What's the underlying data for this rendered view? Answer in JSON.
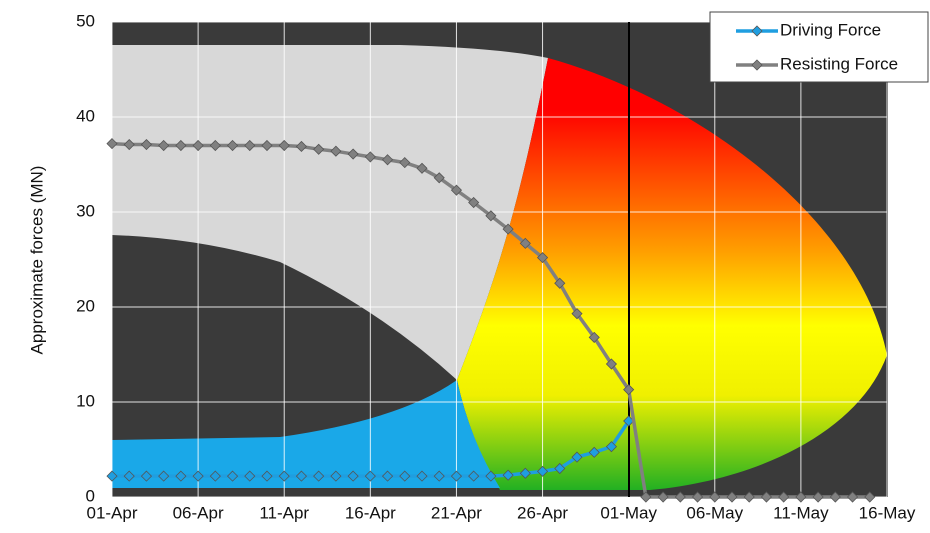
{
  "chart_data": {
    "type": "line",
    "ylabel": "Approximate forces (MN)",
    "x": [
      "01-Apr",
      "02-Apr",
      "03-Apr",
      "04-Apr",
      "05-Apr",
      "06-Apr",
      "07-Apr",
      "08-Apr",
      "09-Apr",
      "10-Apr",
      "11-Apr",
      "12-Apr",
      "13-Apr",
      "14-Apr",
      "15-Apr",
      "16-Apr",
      "17-Apr",
      "18-Apr",
      "19-Apr",
      "20-Apr",
      "21-Apr",
      "22-Apr",
      "23-Apr",
      "24-Apr",
      "25-Apr",
      "26-Apr",
      "27-Apr",
      "28-Apr",
      "29-Apr",
      "30-Apr",
      "01-May",
      "02-May",
      "03-May",
      "04-May",
      "05-May",
      "06-May",
      "07-May",
      "08-May",
      "09-May",
      "10-May",
      "11-May",
      "12-May",
      "13-May",
      "14-May",
      "15-May"
    ],
    "series": [
      {
        "name": "Driving Force",
        "color": "#1f9ee0",
        "values": [
          2.2,
          2.2,
          2.2,
          2.2,
          2.2,
          2.2,
          2.2,
          2.2,
          2.2,
          2.2,
          2.2,
          2.2,
          2.2,
          2.2,
          2.2,
          2.2,
          2.2,
          2.2,
          2.2,
          2.2,
          2.2,
          2.2,
          2.2,
          2.3,
          2.5,
          2.7,
          3.0,
          4.2,
          4.7,
          5.3,
          8.0,
          null,
          null,
          null,
          null,
          null,
          null,
          null,
          null,
          null,
          null,
          null,
          null,
          null,
          null
        ]
      },
      {
        "name": "Resisting Force",
        "color": "#808080",
        "values": [
          37.2,
          37.1,
          37.1,
          37.0,
          37.0,
          37.0,
          37.0,
          37.0,
          37.0,
          37.0,
          37.0,
          36.9,
          36.6,
          36.4,
          36.1,
          35.8,
          35.5,
          35.2,
          34.6,
          33.6,
          32.3,
          31.0,
          29.6,
          28.2,
          26.7,
          25.2,
          22.5,
          19.3,
          16.8,
          14.0,
          11.3,
          0,
          0,
          0,
          0,
          0,
          0,
          0,
          0,
          0,
          0,
          0,
          0,
          0,
          0
        ]
      }
    ],
    "xlim": [
      "01-Apr",
      "16-May"
    ],
    "xticks": [
      "01-Apr",
      "06-Apr",
      "11-Apr",
      "16-Apr",
      "21-Apr",
      "26-Apr",
      "01-May",
      "06-May",
      "11-May",
      "16-May"
    ],
    "ylim": [
      0,
      50
    ],
    "yticks": [
      0,
      10,
      20,
      30,
      40,
      50
    ],
    "grid": true,
    "legend": "upper right"
  }
}
